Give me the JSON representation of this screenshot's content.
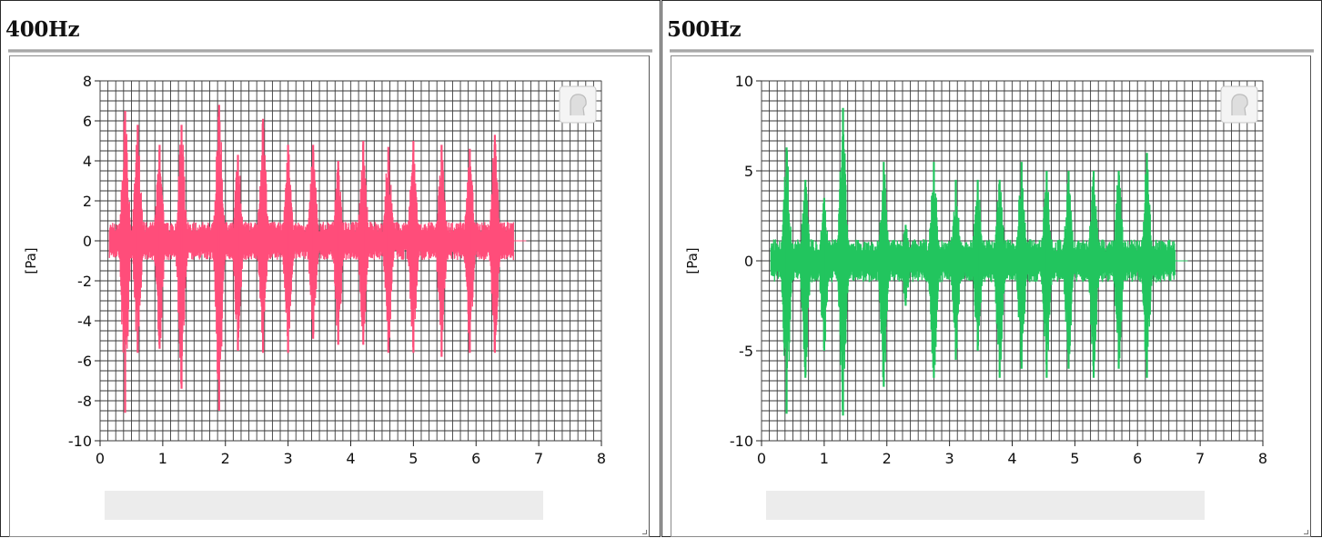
{
  "panels": [
    {
      "id": "400",
      "title": "400Hz",
      "chart_data": {
        "type": "line",
        "title": "400Hz",
        "ylabel": "[Pa]",
        "xlabel": "",
        "xlim": [
          0,
          8
        ],
        "ylim": [
          -10,
          8
        ],
        "x_ticks": [
          0,
          1,
          2,
          3,
          4,
          5,
          6,
          7,
          8
        ],
        "y_ticks": [
          8,
          6,
          4,
          2,
          0,
          -2,
          -4,
          -6,
          -8,
          -10
        ],
        "grid": true,
        "color": "#ff4d7a",
        "signal_range": [
          0.15,
          6.6
        ],
        "baseline_amplitude": 0.8,
        "bursts": [
          {
            "t": 0.4,
            "max": 6.5,
            "min": -8.6
          },
          {
            "t": 0.6,
            "max": 5.8,
            "min": -5.6
          },
          {
            "t": 0.95,
            "max": 4.8,
            "min": -5.4
          },
          {
            "t": 1.3,
            "max": 5.8,
            "min": -7.4
          },
          {
            "t": 1.9,
            "max": 6.8,
            "min": -8.5
          },
          {
            "t": 2.2,
            "max": 4.3,
            "min": -5.5
          },
          {
            "t": 2.6,
            "max": 6.1,
            "min": -5.6
          },
          {
            "t": 3.0,
            "max": 4.8,
            "min": -5.6
          },
          {
            "t": 3.4,
            "max": 4.8,
            "min": -4.9
          },
          {
            "t": 3.8,
            "max": 4.0,
            "min": -5.2
          },
          {
            "t": 4.2,
            "max": 5.0,
            "min": -5.2
          },
          {
            "t": 4.6,
            "max": 4.7,
            "min": -5.6
          },
          {
            "t": 5.0,
            "max": 5.0,
            "min": -5.6
          },
          {
            "t": 5.45,
            "max": 4.8,
            "min": -5.8
          },
          {
            "t": 5.9,
            "max": 4.6,
            "min": -5.6
          },
          {
            "t": 6.3,
            "max": 5.3,
            "min": -5.6
          }
        ]
      }
    },
    {
      "id": "500",
      "title": "500Hz",
      "chart_data": {
        "type": "line",
        "title": "500Hz",
        "ylabel": "[Pa]",
        "xlabel": "",
        "xlim": [
          0,
          8
        ],
        "ylim": [
          -10,
          10
        ],
        "x_ticks": [
          0,
          1,
          2,
          3,
          4,
          5,
          6,
          7,
          8
        ],
        "y_ticks": [
          10,
          5,
          0,
          -5,
          -10
        ],
        "grid": true,
        "color": "#22c55e",
        "signal_range": [
          0.15,
          6.6
        ],
        "baseline_amplitude": 1.0,
        "bursts": [
          {
            "t": 0.4,
            "max": 6.3,
            "min": -8.5
          },
          {
            "t": 0.7,
            "max": 4.5,
            "min": -6.5
          },
          {
            "t": 1.0,
            "max": 3.5,
            "min": -5.0
          },
          {
            "t": 1.3,
            "max": 8.5,
            "min": -8.6
          },
          {
            "t": 1.95,
            "max": 5.5,
            "min": -7.0
          },
          {
            "t": 2.3,
            "max": 2.0,
            "min": -2.5
          },
          {
            "t": 2.75,
            "max": 5.5,
            "min": -6.5
          },
          {
            "t": 3.1,
            "max": 4.5,
            "min": -5.5
          },
          {
            "t": 3.45,
            "max": 4.5,
            "min": -5.0
          },
          {
            "t": 3.8,
            "max": 4.5,
            "min": -6.5
          },
          {
            "t": 4.15,
            "max": 5.5,
            "min": -6.0
          },
          {
            "t": 4.55,
            "max": 5.0,
            "min": -6.5
          },
          {
            "t": 4.9,
            "max": 5.0,
            "min": -6.0
          },
          {
            "t": 5.3,
            "max": 5.0,
            "min": -6.5
          },
          {
            "t": 5.7,
            "max": 5.0,
            "min": -6.0
          },
          {
            "t": 6.15,
            "max": 6.0,
            "min": -6.5
          }
        ]
      }
    }
  ]
}
